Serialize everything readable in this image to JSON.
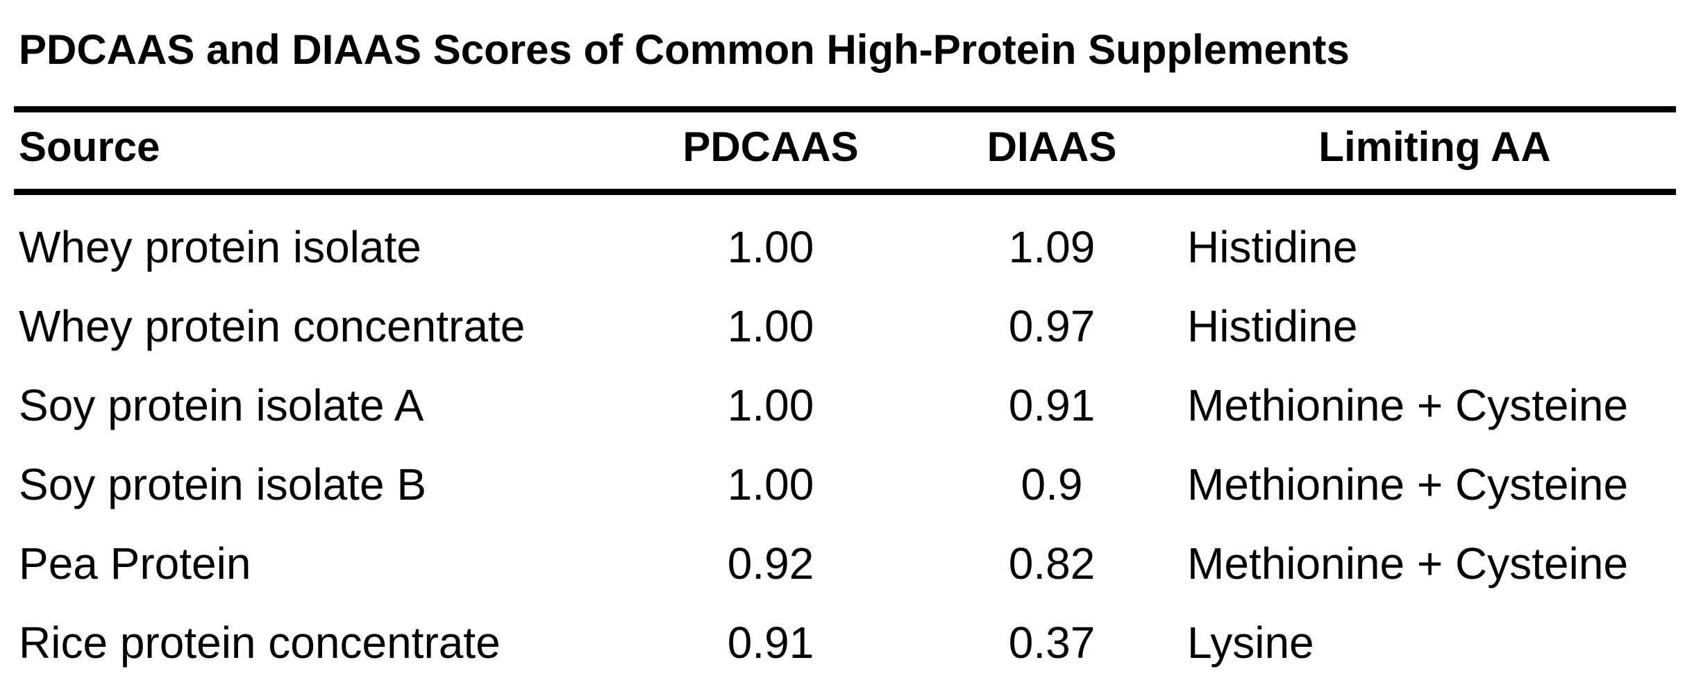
{
  "title": "PDCAAS and DIAAS Scores of Common High-Protein Supplements",
  "colors": {
    "background": "#ffffff",
    "text": "#000000",
    "rule": "#000000"
  },
  "table": {
    "columns": [
      "Source",
      "PDCAAS",
      "DIAAS",
      "Limiting AA"
    ],
    "rows": [
      {
        "source": "Whey protein isolate",
        "pdcaas": "1.00",
        "diaas": "1.09",
        "limiting_aa": "Histidine"
      },
      {
        "source": "Whey protein concentrate",
        "pdcaas": "1.00",
        "diaas": "0.97",
        "limiting_aa": "Histidine"
      },
      {
        "source": "Soy protein isolate A",
        "pdcaas": "1.00",
        "diaas": "0.91",
        "limiting_aa": "Methionine + Cysteine"
      },
      {
        "source": "Soy protein isolate B",
        "pdcaas": "1.00",
        "diaas": "0.9",
        "limiting_aa": "Methionine + Cysteine"
      },
      {
        "source": "Pea Protein",
        "pdcaas": "0.92",
        "diaas": "0.82",
        "limiting_aa": "Methionine + Cysteine"
      },
      {
        "source": "Rice protein concentrate",
        "pdcaas": "0.91",
        "diaas": "0.37",
        "limiting_aa": "Lysine"
      }
    ]
  },
  "chart_data": {
    "type": "table",
    "title": "PDCAAS and DIAAS Scores of Common High-Protein Supplements",
    "columns": [
      "Source",
      "PDCAAS",
      "DIAAS",
      "Limiting AA"
    ],
    "rows": [
      [
        "Whey protein isolate",
        "1.00",
        "1.09",
        "Histidine"
      ],
      [
        "Whey protein concentrate",
        "1.00",
        "0.97",
        "Histidine"
      ],
      [
        "Soy protein isolate A",
        "1.00",
        "0.91",
        "Methionine + Cysteine"
      ],
      [
        "Soy protein isolate B",
        "1.00",
        "0.9",
        "Methionine + Cysteine"
      ],
      [
        "Pea Protein",
        "0.92",
        "0.82",
        "Methionine + Cysteine"
      ],
      [
        "Rice protein concentrate",
        "0.91",
        "0.37",
        "Lysine"
      ]
    ],
    "layout": {
      "header_style": "bold, top and bottom heavy rules",
      "numeric_columns_alignment": "center",
      "text_columns_alignment": "left",
      "grid": false
    }
  }
}
